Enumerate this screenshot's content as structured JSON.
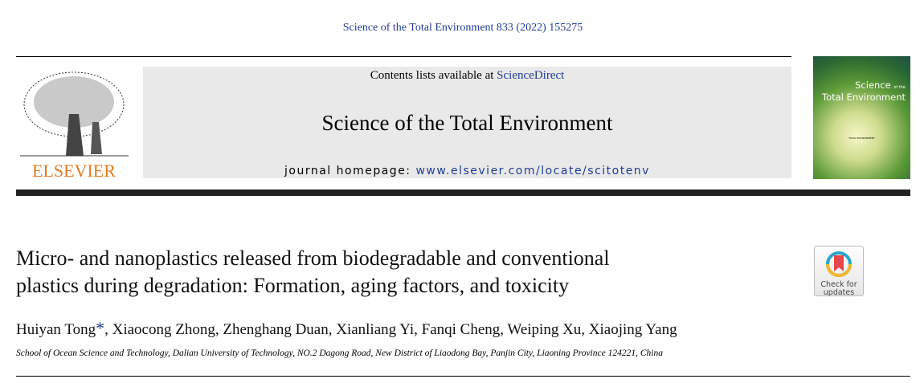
{
  "header": {
    "citation": "Science of the Total Environment 833 (2022) 155275",
    "contents_prefix": "Contents lists available at ",
    "contents_link": "ScienceDirect",
    "journal_title": "Science of the Total Environment",
    "homepage_prefix": "journal homepage: ",
    "homepage_link": "www.elsevier.com/locate/scitotenv",
    "publisher_logo": "ELSEVIER",
    "cover_title_1": "Science",
    "cover_title_2": "of the",
    "cover_title_3": "Total Environment",
    "cover_center": "TOTAL ENVIRONMENT"
  },
  "article": {
    "title_line1": "Micro- and nanoplastics released from biodegradable and conventional",
    "title_line2": "plastics during degradation: Formation, aging factors, and toxicity",
    "first_author": "Huiyan Tong",
    "corresponding_mark": "*",
    "other_authors": ", Xiaocong Zhong, Zhenghang Duan, Xianliang Yi, Fanqi Cheng, Weiping Xu, Xiaojing Yang",
    "affiliation": "School of Ocean Science and Technology, Dalian University of Technology, NO.2 Dagong Road, New District of Liaodong Bay, Panjin City, Liaoning Province 124221, China",
    "check_updates_1": "Check for",
    "check_updates_2": "updates"
  },
  "colors": {
    "link": "#1f3c96",
    "logo": "#e07b1f",
    "bar": "#222222"
  }
}
